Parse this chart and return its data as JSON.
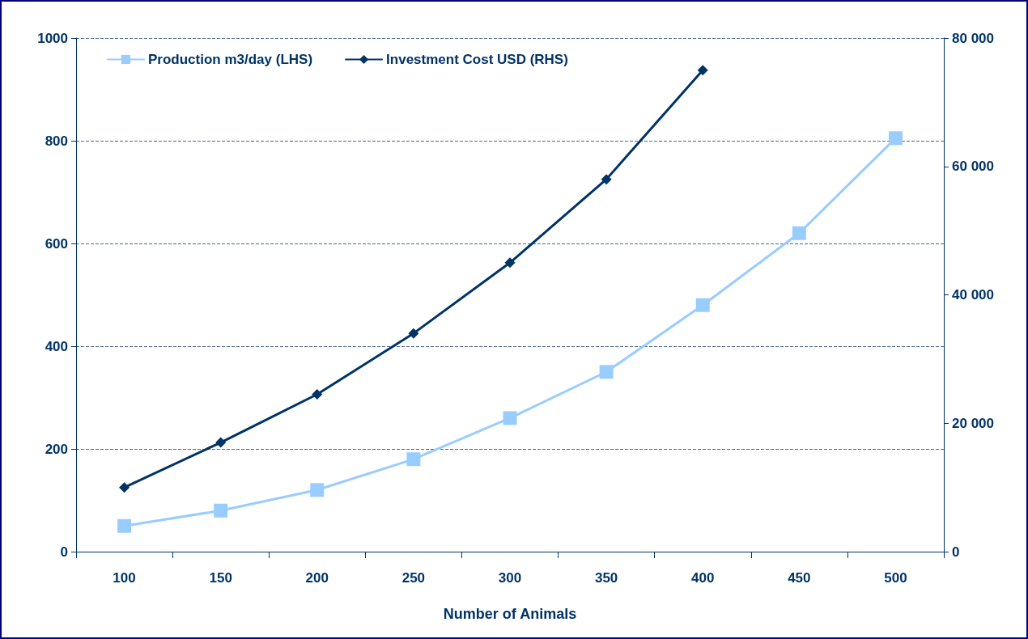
{
  "chart_data": {
    "type": "line",
    "xlabel": "Number of Animals",
    "categories": [
      "100",
      "150",
      "200",
      "250",
      "300",
      "350",
      "400",
      "450",
      "500"
    ],
    "series": [
      {
        "name": "Production m3/day (LHS)",
        "color": "#99ccff",
        "marker": "square",
        "values": [
          50,
          80,
          120,
          180,
          260,
          350,
          480,
          620,
          805
        ]
      },
      {
        "name": "Investment Cost USD (RHS)",
        "color": "#003366",
        "marker": "diamond",
        "axis": "y2",
        "values": [
          10000,
          17000,
          24500,
          34000,
          45000,
          58000,
          75000,
          null,
          null
        ]
      }
    ],
    "ylim": [
      0,
      1000
    ],
    "yticks": [
      0,
      200,
      400,
      600,
      800,
      1000
    ],
    "y2lim": [
      0,
      80000
    ],
    "y2ticks": [
      0,
      {
        "value": 20000,
        "label": "20 000"
      },
      {
        "value": 40000,
        "label": "40 000"
      },
      {
        "value": 60000,
        "label": "60 000"
      },
      {
        "value": 80000,
        "label": "80 000"
      }
    ],
    "grid": "y",
    "legend": "top left",
    "line_style": "solid"
  }
}
